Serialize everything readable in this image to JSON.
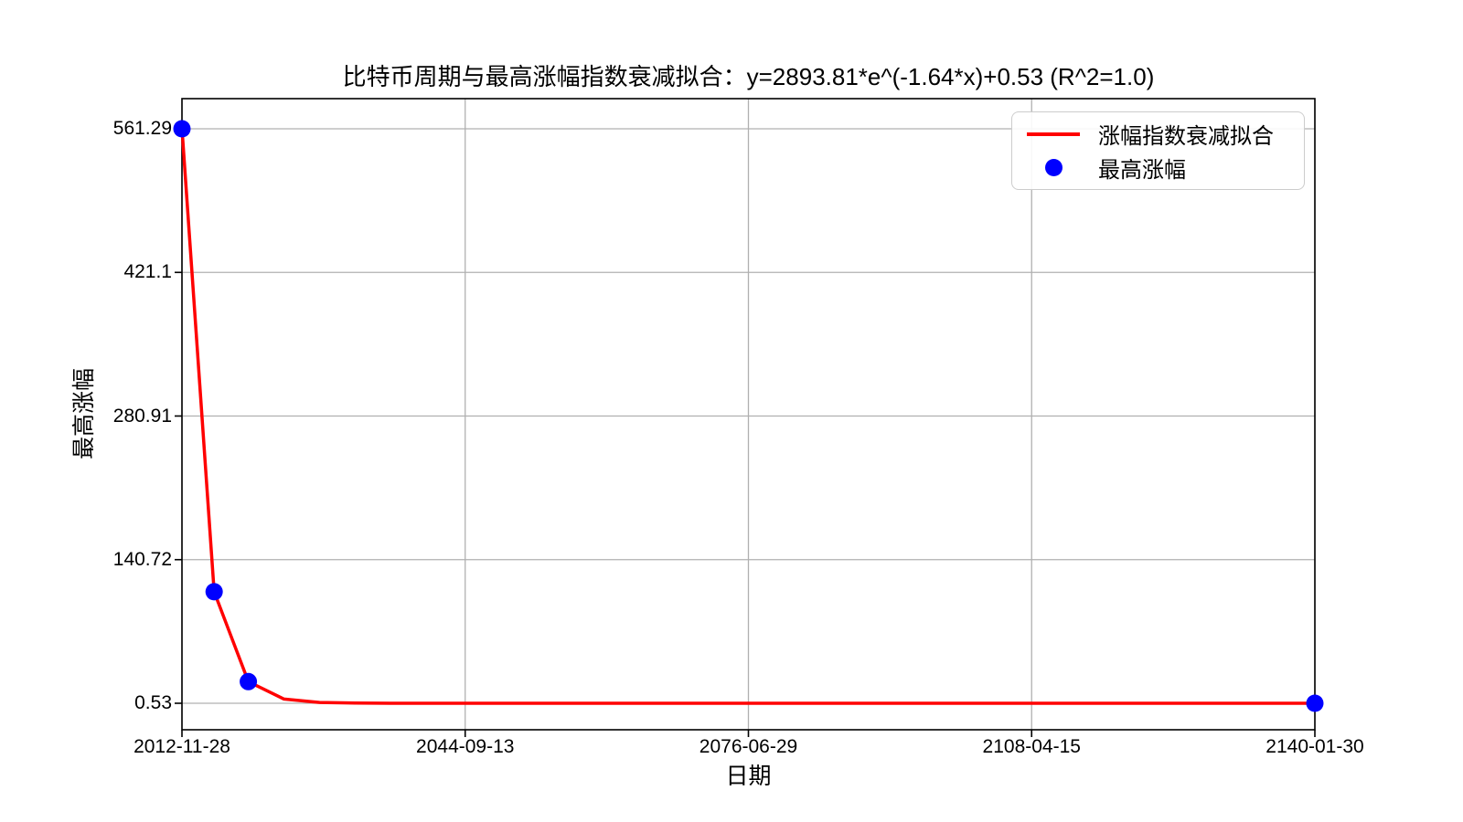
{
  "figure": {
    "title": "比特币周期与最高涨幅指数衰减拟合：y=2893.81*e^(-1.64*x)+0.53 (R^2=1.0)",
    "xlabel": "日期",
    "ylabel": "最高涨幅"
  },
  "legend": {
    "items": [
      {
        "label": "涨幅指数衰减拟合",
        "marker": "line",
        "color": "#ff0000"
      },
      {
        "label": "最高涨幅",
        "marker": "dot",
        "color": "#0000ff"
      }
    ]
  },
  "chart_data": {
    "type": "line",
    "title": "比特币周期与最高涨幅指数衰减拟合：y=2893.81*e^(-1.64*x)+0.53 (R^2=1.0)",
    "xlabel": "日期",
    "ylabel": "最高涨幅",
    "x_ticks": [
      "2012-11-28",
      "2044-09-13",
      "2076-06-29",
      "2108-04-15",
      "2140-01-30"
    ],
    "y_ticks": [
      0.53,
      140.72,
      280.91,
      421.1,
      561.29
    ],
    "x_range": [
      "2012-11-28",
      "2140-01-30"
    ],
    "ylim_ticks": [
      0.53,
      561.29
    ],
    "grid": true,
    "legend_position": "upper right",
    "colors": {
      "fit_line": "#ff0000",
      "scatter": "#0000ff",
      "grid": "#b0b0b0",
      "spine": "#000000"
    },
    "series": [
      {
        "name": "最高涨幅",
        "type": "scatter",
        "color": "#0000ff",
        "x": [
          "2012-11-28",
          "2016-07-09",
          "2020-05-11",
          "2140-01-30"
        ],
        "y": [
          561.29,
          109.43,
          21.65,
          0.53
        ]
      },
      {
        "name": "涨幅指数衰减拟合",
        "type": "line",
        "color": "#ff0000",
        "equation": "y=2893.81*e^(-1.64*x)+0.53",
        "params": {
          "a": 2893.81,
          "b": 1.64,
          "c": 0.53
        },
        "r_squared": 1.0
      }
    ]
  }
}
